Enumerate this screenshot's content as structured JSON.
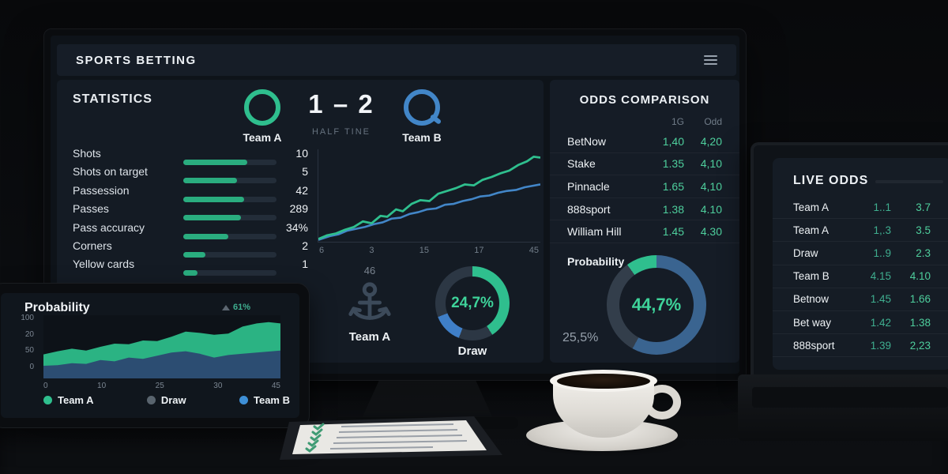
{
  "app": {
    "title": "SPORTS BETTING",
    "menu_icon": "hamburger-icon"
  },
  "colors": {
    "accent_green": "#2fbf8e",
    "accent_blue": "#4286c8",
    "value_green": "#4ecf9d",
    "panel_bg": "#141b24",
    "screen_bg": "#0e1319",
    "desk_brown": "#6a4f36"
  },
  "statistics": {
    "title": "STATISTICS",
    "scoreboard": {
      "team_a": "Team A",
      "score": "1 – 2",
      "period": "HALF TINE",
      "team_b": "Team B"
    },
    "stats": [
      {
        "label": "Shots",
        "value": "10",
        "pct": 69
      },
      {
        "label": "Shots on target",
        "value": "5",
        "pct": 58
      },
      {
        "label": "Passession",
        "value": "42",
        "pct": 65
      },
      {
        "label": "Passes",
        "value": "289",
        "pct": 62
      },
      {
        "label": "Pass accuracy",
        "value": "34%",
        "pct": 48
      },
      {
        "label": "Corners",
        "value": "2",
        "pct": 24
      },
      {
        "label": "Yellow cards",
        "value": "1",
        "pct": 15
      }
    ],
    "team_a_block": {
      "value": "46",
      "icon": "anchor-icon",
      "label": "Team A"
    },
    "draw_donut": {
      "center": "24,7%",
      "label": "Draw"
    }
  },
  "odds_comparison": {
    "title": "ODDS COMPARISON",
    "columns": [
      "1G",
      "Odd"
    ],
    "rows": [
      {
        "name": "BetNow",
        "v1": "1,40",
        "v2": "4,20"
      },
      {
        "name": "Stake",
        "v1": "1.35",
        "v2": "4,10"
      },
      {
        "name": "Pinnacle",
        "v1": "1.65",
        "v2": "4,10"
      },
      {
        "name": "888sport",
        "v1": "1.38",
        "v2": "4.10"
      },
      {
        "name": "William Hill",
        "v1": "1.45",
        "v2": "4.30"
      }
    ],
    "probability": {
      "label": "Probability",
      "center": "44,7%",
      "side": "25,5%"
    }
  },
  "live_odds": {
    "title": "LIVE ODDS",
    "rows": [
      {
        "name": "Team A",
        "v1": "1..1",
        "v2": "3.7"
      },
      {
        "name": "Team A",
        "v1": "1,.3",
        "v2": "3.5"
      },
      {
        "name": "Draw",
        "v1": "1..9",
        "v2": "2.3"
      },
      {
        "name": "Team B",
        "v1": "4.15",
        "v2": "4.10"
      },
      {
        "name": "Betnow",
        "v1": "1.45",
        "v2": "1.66"
      },
      {
        "name": "Bet way",
        "v1": "1.42",
        "v2": "1.38"
      },
      {
        "name": "888sport",
        "v1": "1.39",
        "v2": "2,23"
      }
    ]
  },
  "tablet": {
    "title": "Probability",
    "badge": "61%",
    "badge_icon": "trend-up-icon",
    "legend": [
      {
        "label": "Team A",
        "color": "#2fbf8e"
      },
      {
        "label": "Draw",
        "color": "#59646e"
      },
      {
        "label": "Team B",
        "color": "#3e8fd6"
      }
    ]
  },
  "chart_data": [
    {
      "type": "line",
      "title": "Match progression (monitor center chart)",
      "x_ticks": [
        "6",
        "3",
        "15",
        "17",
        "45"
      ],
      "ylim": [
        0,
        100
      ],
      "grid": false,
      "series": [
        {
          "name": "Team A",
          "color": "#2fbf8e",
          "points": [
            [
              0,
              3
            ],
            [
              4,
              7
            ],
            [
              8,
              9
            ],
            [
              12,
              13
            ],
            [
              16,
              16
            ],
            [
              20,
              22
            ],
            [
              24,
              20
            ],
            [
              28,
              28
            ],
            [
              31,
              27
            ],
            [
              35,
              35
            ],
            [
              38,
              33
            ],
            [
              42,
              41
            ],
            [
              46,
              45
            ],
            [
              50,
              44
            ],
            [
              54,
              52
            ],
            [
              58,
              55
            ],
            [
              62,
              58
            ],
            [
              66,
              62
            ],
            [
              70,
              61
            ],
            [
              74,
              67
            ],
            [
              78,
              70
            ],
            [
              82,
              74
            ],
            [
              86,
              77
            ],
            [
              90,
              83
            ],
            [
              94,
              87
            ],
            [
              97,
              92
            ],
            [
              100,
              91
            ]
          ]
        },
        {
          "name": "Team B",
          "color": "#4286c8",
          "points": [
            [
              0,
              2
            ],
            [
              5,
              6
            ],
            [
              9,
              8
            ],
            [
              13,
              12
            ],
            [
              17,
              14
            ],
            [
              21,
              16
            ],
            [
              25,
              19
            ],
            [
              29,
              21
            ],
            [
              33,
              25
            ],
            [
              37,
              26
            ],
            [
              41,
              30
            ],
            [
              45,
              32
            ],
            [
              49,
              35
            ],
            [
              53,
              36
            ],
            [
              57,
              40
            ],
            [
              61,
              41
            ],
            [
              65,
              44
            ],
            [
              69,
              46
            ],
            [
              73,
              49
            ],
            [
              77,
              50
            ],
            [
              81,
              53
            ],
            [
              85,
              55
            ],
            [
              89,
              56
            ],
            [
              93,
              59
            ],
            [
              100,
              62
            ]
          ]
        }
      ]
    },
    {
      "type": "pie",
      "title": "Draw donut",
      "center_label": "24,7%",
      "label": "Draw",
      "segments": [
        {
          "name": "green",
          "color": "#2fbf8e",
          "from": 0,
          "to": 41
        },
        {
          "name": "track",
          "color": "#2c3744",
          "from": 41,
          "to": 56
        },
        {
          "name": "blue",
          "color": "#3f7fc8",
          "from": 56,
          "to": 69
        },
        {
          "name": "track2",
          "color": "#2c3744",
          "from": 69,
          "to": 100
        }
      ]
    },
    {
      "type": "pie",
      "title": "Probability donut",
      "center_label": "44,7%",
      "annotation": "25,5%",
      "segments": [
        {
          "name": "blue",
          "color": "#3a6490",
          "from": 0,
          "to": 58
        },
        {
          "name": "track",
          "color": "#333e4b",
          "from": 58,
          "to": 90
        },
        {
          "name": "green",
          "color": "#2fbf8e",
          "from": 90,
          "to": 100
        }
      ]
    },
    {
      "type": "area",
      "title": "Probability (tablet)",
      "x_ticks": [
        "0",
        "10",
        "25",
        "30",
        "45"
      ],
      "y_ticks": [
        "100",
        "20",
        "50",
        "0"
      ],
      "legend": [
        "Team A",
        "Draw",
        "Team B"
      ],
      "series": [
        {
          "name": "Team A",
          "color": "#2bb383",
          "points": [
            [
              0,
              38
            ],
            [
              6,
              43
            ],
            [
              12,
              47
            ],
            [
              18,
              44
            ],
            [
              24,
              50
            ],
            [
              30,
              55
            ],
            [
              36,
              54
            ],
            [
              42,
              60
            ],
            [
              48,
              59
            ],
            [
              54,
              66
            ],
            [
              60,
              74
            ],
            [
              66,
              72
            ],
            [
              72,
              69
            ],
            [
              78,
              71
            ],
            [
              84,
              82
            ],
            [
              90,
              87
            ],
            [
              95,
              89
            ],
            [
              100,
              87
            ]
          ]
        },
        {
          "name": "Team B",
          "color": "#2c4d72",
          "points": [
            [
              0,
              20
            ],
            [
              6,
              21
            ],
            [
              12,
              24
            ],
            [
              18,
              23
            ],
            [
              24,
              29
            ],
            [
              30,
              27
            ],
            [
              36,
              33
            ],
            [
              42,
              31
            ],
            [
              48,
              36
            ],
            [
              54,
              41
            ],
            [
              60,
              43
            ],
            [
              66,
              39
            ],
            [
              72,
              33
            ],
            [
              78,
              37
            ],
            [
              84,
              39
            ],
            [
              90,
              41
            ],
            [
              100,
              44
            ]
          ]
        }
      ]
    }
  ]
}
